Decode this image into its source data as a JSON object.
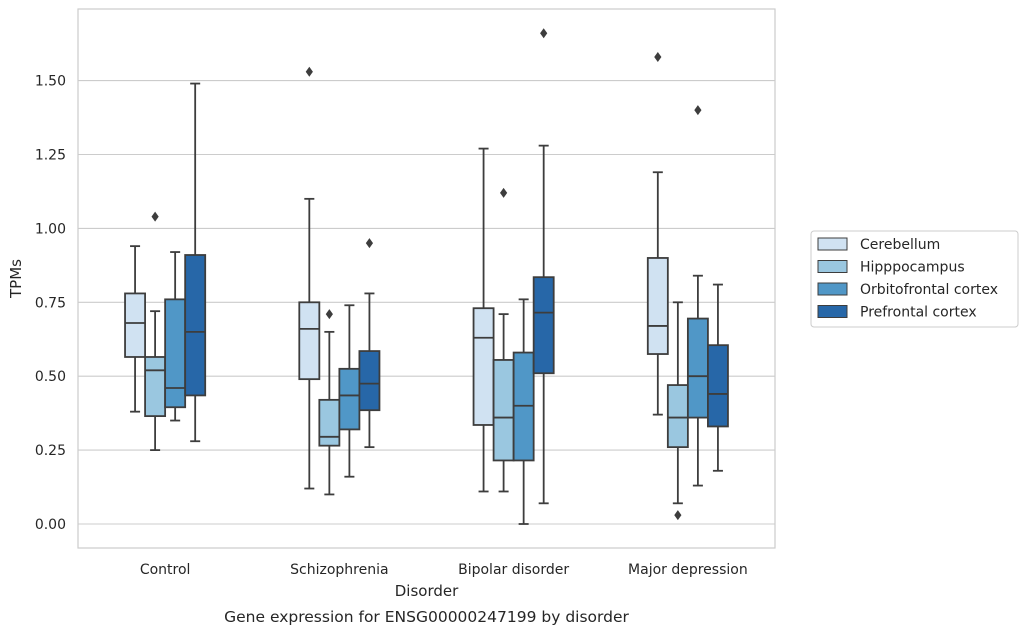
{
  "chart_data": {
    "type": "box",
    "title": "",
    "caption": "Gene expression for ENSG00000247199 by disorder",
    "xlabel": "Disorder",
    "ylabel": "TPMs",
    "ylim": [
      -0.08,
      1.75
    ],
    "yticks": [
      "0.00",
      "0.25",
      "0.50",
      "0.75",
      "1.00",
      "1.25",
      "1.50"
    ],
    "ytick_values": [
      0.0,
      0.25,
      0.5,
      0.75,
      1.0,
      1.25,
      1.5
    ],
    "grid": "horizontal",
    "legend_position": "right",
    "categories": [
      "Control",
      "Schizophrenia",
      "Bipolar disorder",
      "Major depression"
    ],
    "series": [
      {
        "name": "Cerebellum",
        "color": "#d0e2f2",
        "boxes": [
          {
            "whisker_low": 0.38,
            "q1": 0.565,
            "median": 0.68,
            "q3": 0.78,
            "whisker_high": 0.94,
            "outliers": []
          },
          {
            "whisker_low": 0.12,
            "q1": 0.49,
            "median": 0.66,
            "q3": 0.75,
            "whisker_high": 1.1,
            "outliers": [
              1.53
            ]
          },
          {
            "whisker_low": 0.11,
            "q1": 0.335,
            "median": 0.63,
            "q3": 0.73,
            "whisker_high": 1.27,
            "outliers": []
          },
          {
            "whisker_low": 0.37,
            "q1": 0.575,
            "median": 0.67,
            "q3": 0.9,
            "whisker_high": 1.19,
            "outliers": [
              1.58
            ]
          }
        ]
      },
      {
        "name": "Hipppocampus",
        "color": "#9ac7e0",
        "boxes": [
          {
            "whisker_low": 0.25,
            "q1": 0.365,
            "median": 0.52,
            "q3": 0.565,
            "whisker_high": 0.72,
            "outliers": [
              1.04
            ]
          },
          {
            "whisker_low": 0.1,
            "q1": 0.265,
            "median": 0.295,
            "q3": 0.42,
            "whisker_high": 0.65,
            "outliers": [
              0.71
            ]
          },
          {
            "whisker_low": 0.11,
            "q1": 0.215,
            "median": 0.36,
            "q3": 0.555,
            "whisker_high": 0.71,
            "outliers": [
              1.12
            ]
          },
          {
            "whisker_low": 0.07,
            "q1": 0.26,
            "median": 0.36,
            "q3": 0.47,
            "whisker_high": 0.75,
            "outliers": [
              0.03
            ]
          }
        ]
      },
      {
        "name": "Orbitofrontal cortex",
        "color": "#5097c7",
        "boxes": [
          {
            "whisker_low": 0.35,
            "q1": 0.395,
            "median": 0.46,
            "q3": 0.76,
            "whisker_high": 0.92,
            "outliers": []
          },
          {
            "whisker_low": 0.16,
            "q1": 0.32,
            "median": 0.435,
            "q3": 0.525,
            "whisker_high": 0.74,
            "outliers": []
          },
          {
            "whisker_low": 0.0,
            "q1": 0.215,
            "median": 0.4,
            "q3": 0.58,
            "whisker_high": 0.76,
            "outliers": []
          },
          {
            "whisker_low": 0.13,
            "q1": 0.36,
            "median": 0.5,
            "q3": 0.695,
            "whisker_high": 0.84,
            "outliers": [
              1.4
            ]
          }
        ]
      },
      {
        "name": "Prefrontal cortex",
        "color": "#2767a8",
        "boxes": [
          {
            "whisker_low": 0.28,
            "q1": 0.435,
            "median": 0.65,
            "q3": 0.91,
            "whisker_high": 1.49,
            "outliers": []
          },
          {
            "whisker_low": 0.26,
            "q1": 0.385,
            "median": 0.475,
            "q3": 0.585,
            "whisker_high": 0.78,
            "outliers": [
              0.95
            ]
          },
          {
            "whisker_low": 0.07,
            "q1": 0.51,
            "median": 0.715,
            "q3": 0.835,
            "whisker_high": 1.28,
            "outliers": [
              1.66
            ]
          },
          {
            "whisker_low": 0.18,
            "q1": 0.33,
            "median": 0.44,
            "q3": 0.605,
            "whisker_high": 0.81,
            "outliers": []
          }
        ]
      }
    ]
  }
}
